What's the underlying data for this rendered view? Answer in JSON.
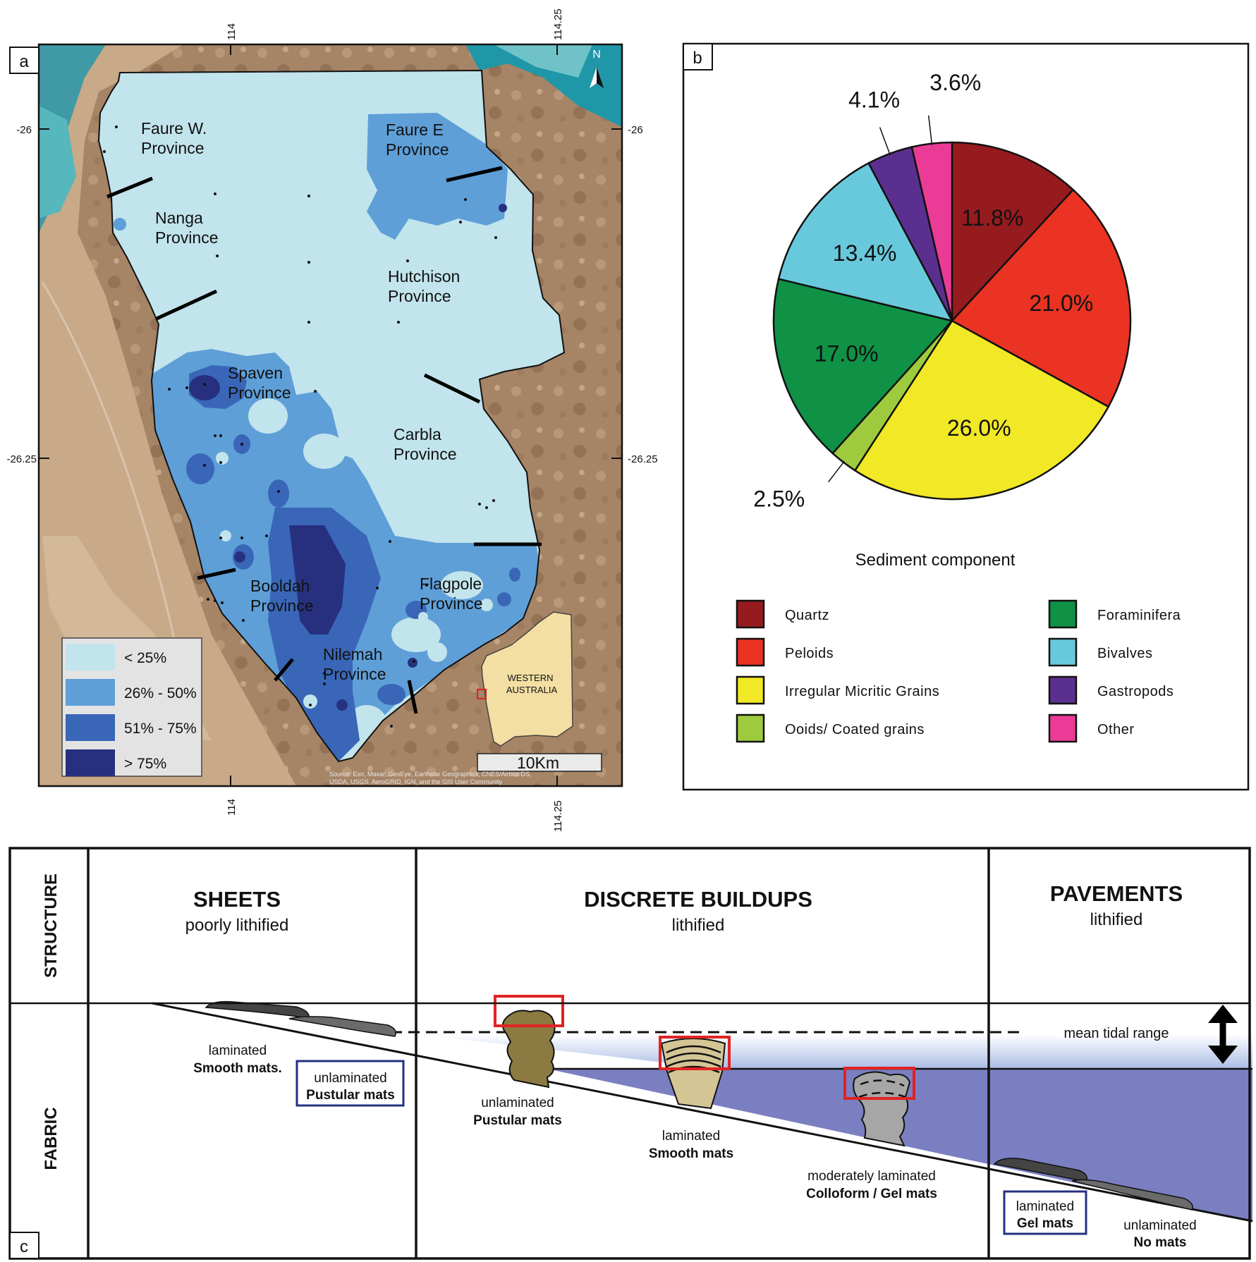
{
  "panels": {
    "a": "a",
    "b": "b",
    "c": "c"
  },
  "map": {
    "ticks": {
      "lon_left": "114",
      "lon_right": "114.25",
      "lat_top": "-26",
      "lat_bottom": "-26.25"
    },
    "north": "N",
    "provinces": [
      {
        "l1": "Faure W.",
        "l2": "Province"
      },
      {
        "l1": "Faure E",
        "l2": "Province"
      },
      {
        "l1": "Nanga",
        "l2": "Province"
      },
      {
        "l1": "Hutchison",
        "l2": "Province"
      },
      {
        "l1": "Spaven",
        "l2": "Province"
      },
      {
        "l1": "Carbla",
        "l2": "Province"
      },
      {
        "l1": "Booldah",
        "l2": "Province"
      },
      {
        "l1": "Flagpole",
        "l2": "Province"
      },
      {
        "l1": "Nilemah",
        "l2": "Province"
      }
    ],
    "legend": [
      {
        "label": "< 25%",
        "color": "#c2e4ec"
      },
      {
        "label": "26% - 50%",
        "color": "#5e9fd8"
      },
      {
        "label": "51% - 75%",
        "color": "#3a66b8"
      },
      {
        "label": "> 75%",
        "color": "#27307f"
      }
    ],
    "inset": {
      "l1": "WESTERN",
      "l2": "AUSTRALIA"
    },
    "scale": "10Km",
    "credit_1": "Source: Esri, Maxar, GeoEye, Earthstar Geographics, CNES/Airbus DS,",
    "credit_2": "USDA, USGS, AeroGRID, IGN, and the GIS User Community"
  },
  "chart_data": {
    "type": "pie",
    "title": "Sediment component",
    "slices": [
      {
        "label": "Quartz",
        "value": 11.8,
        "text": "11.8%",
        "color": "#961b1f"
      },
      {
        "label": "Peloids",
        "value": 21.0,
        "text": "21.0%",
        "color": "#ea3323"
      },
      {
        "label": "Irregular Micritic Grains",
        "value": 26.0,
        "text": "26.0%",
        "color": "#f1e826"
      },
      {
        "label": "Ooids/ Coated grains",
        "value": 2.5,
        "text": "2.5%",
        "color": "#9dcb3d"
      },
      {
        "label": "Foraminifera",
        "value": 17.0,
        "text": "17.0%",
        "color": "#0f9146"
      },
      {
        "label": "Bivalves",
        "value": 13.4,
        "text": "13.4%",
        "color": "#69c9dc"
      },
      {
        "label": "Gastropods",
        "value": 4.1,
        "text": "4.1%",
        "color": "#5b2f8f"
      },
      {
        "label": "Other",
        "value": 3.6,
        "text": "3.6%",
        "color": "#ea3b96"
      }
    ],
    "legend_order": [
      "Quartz",
      "Peloids",
      "Irregular Micritic Grains",
      "Ooids/ Coated grains",
      "Foraminifera",
      "Bivalves",
      "Gastropods",
      "Other"
    ]
  },
  "diagram": {
    "row_structure": "STRUCTURE",
    "row_fabric": "FABRIC",
    "columns": [
      {
        "title": "SHEETS",
        "sub": "poorly lithified"
      },
      {
        "title": "DISCRETE BUILDUPS",
        "sub": "lithified"
      },
      {
        "title": "PAVEMENTS",
        "sub": "lithified"
      }
    ],
    "tidal": "mean tidal range",
    "fabrics": [
      {
        "l1": "laminated",
        "l2": "Smooth mats."
      },
      {
        "l1": "unlaminated",
        "l2": "Pustular mats"
      },
      {
        "l1": "unlaminated",
        "l2": "Pustular mats"
      },
      {
        "l1": "laminated",
        "l2": "Smooth mats"
      },
      {
        "l1": "moderately laminated",
        "l2": "Colloform / Gel mats"
      },
      {
        "l1": "laminated",
        "l2": "Gel mats"
      },
      {
        "l1": "unlaminated",
        "l2": "No mats"
      }
    ]
  }
}
